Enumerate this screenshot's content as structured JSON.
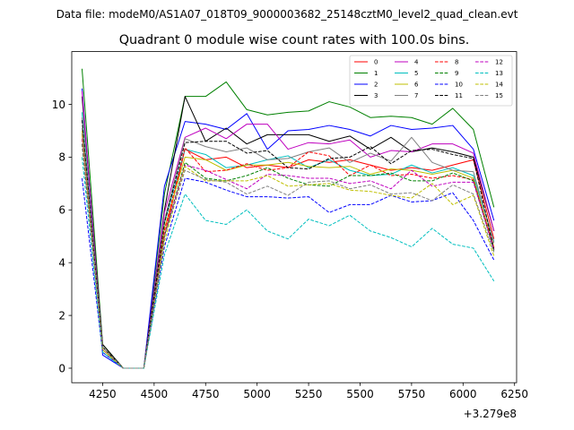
{
  "figure": {
    "suptitle": "Data file: modeM0/AS1A07_018T09_9000003682_25148cztM0_level2_quad_clean.evt"
  },
  "chart_data": {
    "type": "line",
    "title": "Quadrant 0 module wise count rates with 100.0s bins.",
    "xlabel": "",
    "ylabel": "",
    "x_offset_label": "+3.279e8",
    "xlim": [
      4100,
      6260
    ],
    "ylim": [
      -0.55,
      12.0
    ],
    "xticks": [
      4250,
      4500,
      4750,
      5000,
      5250,
      5500,
      5750,
      6000,
      6250
    ],
    "yticks": [
      0,
      2,
      4,
      6,
      8,
      10
    ],
    "grid": false,
    "legend": {
      "placement": "top-right",
      "columns": 4
    },
    "x": [
      4150,
      4250,
      4350,
      4450,
      4550,
      4650,
      4750,
      4850,
      4950,
      5050,
      5150,
      5250,
      5350,
      5450,
      5550,
      5650,
      5750,
      5850,
      5950,
      6050,
      6150
    ],
    "series": [
      {
        "name": "0",
        "color": "#ff0000",
        "dash": "solid",
        "values": [
          8.9,
          0.8,
          0.0,
          0.0,
          5.0,
          8.3,
          7.9,
          8.0,
          7.6,
          7.7,
          7.6,
          7.9,
          7.8,
          7.9,
          7.7,
          7.5,
          7.6,
          7.5,
          7.7,
          7.9,
          4.9
        ]
      },
      {
        "name": "1",
        "color": "#008000",
        "dash": "solid",
        "values": [
          11.35,
          0.9,
          0.0,
          0.0,
          6.6,
          10.3,
          10.3,
          10.85,
          9.8,
          9.6,
          9.7,
          9.75,
          10.1,
          9.9,
          9.5,
          9.55,
          9.5,
          9.25,
          9.85,
          9.05,
          6.1
        ]
      },
      {
        "name": "2",
        "color": "#0000ff",
        "dash": "solid",
        "values": [
          10.6,
          0.5,
          0.0,
          0.0,
          6.9,
          9.35,
          9.25,
          9.05,
          9.65,
          8.3,
          9.0,
          9.05,
          9.2,
          9.05,
          8.8,
          9.2,
          9.05,
          9.1,
          9.2,
          8.3,
          5.6
        ]
      },
      {
        "name": "3",
        "color": "#000000",
        "dash": "solid",
        "values": [
          10.3,
          0.9,
          0.0,
          0.0,
          6.0,
          10.3,
          8.6,
          9.1,
          8.5,
          8.85,
          8.85,
          8.85,
          8.6,
          8.8,
          8.3,
          8.75,
          8.2,
          8.35,
          8.2,
          8.0,
          5.2
        ]
      },
      {
        "name": "4",
        "color": "#bf00bf",
        "dash": "solid",
        "values": [
          10.5,
          0.7,
          0.0,
          0.0,
          5.9,
          8.75,
          9.1,
          8.7,
          9.25,
          9.25,
          8.3,
          8.55,
          8.5,
          8.65,
          8.0,
          8.25,
          8.2,
          8.5,
          8.5,
          8.15,
          5.2
        ]
      },
      {
        "name": "5",
        "color": "#00bfbf",
        "dash": "solid",
        "values": [
          9.7,
          0.7,
          0.0,
          0.0,
          5.5,
          8.3,
          8.1,
          7.6,
          7.7,
          7.9,
          8.05,
          7.6,
          7.9,
          7.5,
          7.3,
          7.35,
          7.7,
          7.4,
          7.6,
          7.3,
          4.8
        ]
      },
      {
        "name": "6",
        "color": "#bfbf00",
        "dash": "solid",
        "values": [
          9.0,
          0.7,
          0.0,
          0.0,
          5.3,
          8.0,
          7.9,
          7.5,
          7.7,
          7.7,
          7.8,
          7.65,
          7.6,
          7.65,
          7.35,
          7.55,
          7.5,
          7.35,
          7.5,
          7.2,
          4.6
        ]
      },
      {
        "name": "7",
        "color": "#808080",
        "dash": "solid",
        "values": [
          9.5,
          0.8,
          0.0,
          0.0,
          5.6,
          8.7,
          8.4,
          8.2,
          8.35,
          7.9,
          7.95,
          8.2,
          8.35,
          7.8,
          8.15,
          7.85,
          8.75,
          7.8,
          7.5,
          7.45,
          4.75
        ]
      },
      {
        "name": "8",
        "color": "#ff0000",
        "dash": "dashed",
        "values": [
          8.7,
          0.8,
          0.0,
          0.0,
          5.2,
          8.35,
          7.45,
          7.5,
          7.75,
          7.5,
          7.6,
          8.2,
          8.05,
          7.3,
          7.7,
          7.3,
          7.35,
          7.2,
          7.3,
          7.15,
          4.55
        ]
      },
      {
        "name": "9",
        "color": "#008000",
        "dash": "dashed",
        "values": [
          8.5,
          0.8,
          0.0,
          0.0,
          5.0,
          7.8,
          7.2,
          7.1,
          7.3,
          7.6,
          7.2,
          6.95,
          6.9,
          7.3,
          7.3,
          7.4,
          7.1,
          7.1,
          7.4,
          7.1,
          4.45
        ]
      },
      {
        "name": "10",
        "color": "#0000ff",
        "dash": "dashed",
        "values": [
          7.2,
          0.6,
          0.0,
          0.0,
          4.6,
          7.2,
          7.05,
          6.75,
          6.5,
          6.5,
          6.45,
          6.5,
          5.9,
          6.2,
          6.2,
          6.55,
          6.3,
          6.35,
          6.65,
          5.6,
          4.1
        ]
      },
      {
        "name": "11",
        "color": "#000000",
        "dash": "dashed",
        "values": [
          9.4,
          0.8,
          0.0,
          0.0,
          5.5,
          8.55,
          8.6,
          8.6,
          8.15,
          8.25,
          7.6,
          7.55,
          7.95,
          8.0,
          8.4,
          7.75,
          8.25,
          8.3,
          8.1,
          7.95,
          4.5
        ]
      },
      {
        "name": "12",
        "color": "#bf00bf",
        "dash": "dashed",
        "values": [
          8.7,
          0.7,
          0.0,
          0.0,
          5.0,
          7.7,
          7.5,
          7.15,
          6.8,
          7.35,
          7.3,
          7.2,
          7.2,
          7.0,
          7.1,
          6.8,
          7.5,
          6.9,
          7.05,
          7.05,
          4.5
        ]
      },
      {
        "name": "13",
        "color": "#00bfbf",
        "dash": "dashed",
        "values": [
          8.0,
          0.6,
          0.0,
          0.0,
          4.3,
          6.6,
          5.6,
          5.45,
          6.0,
          5.2,
          4.9,
          5.65,
          5.4,
          5.8,
          5.2,
          4.95,
          4.6,
          5.3,
          4.7,
          4.55,
          3.3
        ]
      },
      {
        "name": "14",
        "color": "#bfbf00",
        "dash": "dashed",
        "values": [
          8.9,
          0.7,
          0.0,
          0.0,
          4.8,
          7.65,
          7.1,
          7.1,
          7.1,
          7.3,
          6.9,
          6.95,
          7.0,
          6.75,
          6.7,
          6.55,
          6.45,
          7.0,
          6.2,
          6.55,
          4.25
        ]
      },
      {
        "name": "15",
        "color": "#808080",
        "dash": "dashed",
        "values": [
          9.1,
          0.8,
          0.0,
          0.0,
          5.0,
          7.5,
          7.15,
          7.05,
          6.6,
          6.9,
          6.55,
          7.05,
          7.1,
          6.8,
          6.95,
          6.6,
          6.65,
          6.35,
          6.95,
          6.6,
          4.4
        ]
      }
    ]
  }
}
